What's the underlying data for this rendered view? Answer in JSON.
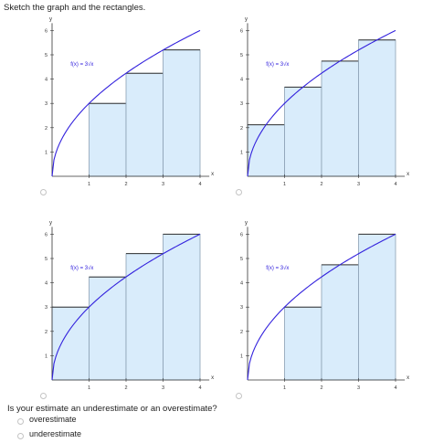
{
  "instruction": "Sketch the graph and the rectangles.",
  "question": "Is your estimate an underestimate or an overestimate?",
  "choices": [
    {
      "label": "overestimate"
    },
    {
      "label": "underestimate"
    }
  ],
  "graph_choices": [
    {
      "function_label": "f(x) = 3√x",
      "rect_x": [
        1,
        2,
        3
      ],
      "rect_heights": [
        3,
        4.24,
        5.2
      ]
    },
    {
      "function_label": "f(x) = 3√x",
      "rect_x": [
        0,
        1,
        2,
        3
      ],
      "rect_heights": [
        2.12,
        3.67,
        4.74,
        5.61
      ]
    },
    {
      "function_label": "f(x) = 3√x",
      "rect_x": [
        0,
        1,
        2,
        3
      ],
      "rect_heights": [
        3,
        4.24,
        5.2,
        6
      ]
    },
    {
      "function_label": "f(x) = 3√x",
      "rect_x": [
        1,
        2,
        3
      ],
      "rect_heights": [
        3,
        4.74,
        6
      ]
    }
  ],
  "axes": {
    "x_label": "x",
    "y_label": "y",
    "x_ticks": [
      "1",
      "2",
      "3",
      "4"
    ],
    "y_ticks": [
      "1",
      "2",
      "3",
      "4",
      "5",
      "6"
    ],
    "x_range": [
      0,
      4
    ],
    "y_range": [
      0,
      6
    ]
  },
  "colors": {
    "curve": "#3322dd",
    "rect_fill": "#d9ecfb",
    "rect_stroke": "#8aa0b4",
    "top_edge": "#333333"
  }
}
